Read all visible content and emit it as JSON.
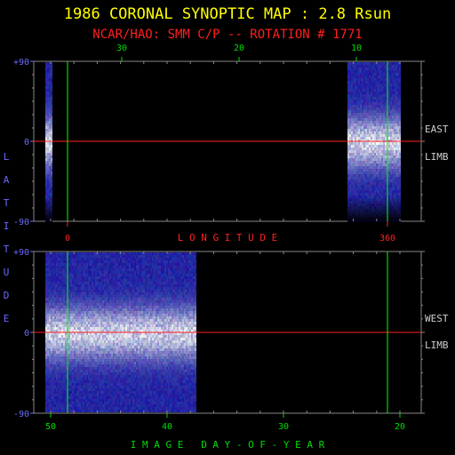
{
  "header": {
    "title": "1986 CORONAL SYNOPTIC MAP : 2.8 Rsun",
    "subtitle": "NCAR/HAO: SMM C/P -- ROTATION # 1771"
  },
  "labels": {
    "lat_letters": [
      "L",
      "A",
      "T",
      "I",
      "T",
      "U",
      "D",
      "E"
    ],
    "longitude": "L O N G I T U D E",
    "day_of_year": "I M A G E   D A Y - O F - Y E A R",
    "east": "EAST",
    "west": "WEST",
    "limb_east": "LIMB",
    "limb_west": "LIMB"
  },
  "colors": {
    "title": "#ffff00",
    "subtitle": "#ff2020",
    "lat_ticks": "#6a6aff",
    "top_ticks": "#00dd00",
    "bottom_ticks": "#00dd00",
    "longitude_label": "#ff2020",
    "meridian": "#00ff00",
    "equator": "#ff2020",
    "side_text": "#d0d0d0",
    "axis": "#888888"
  },
  "chart_data": [
    {
      "type": "heatmap",
      "panel": "top",
      "side": "east",
      "ylabel": "LATITUDE",
      "y_ticks": [
        "+90",
        "0",
        "-90"
      ],
      "y_tick_values": [
        90,
        0,
        -90
      ],
      "top_ticks": [
        "30",
        "20",
        "10"
      ],
      "top_tick_days": [
        30,
        20,
        10
      ],
      "x_ticks": [
        "0",
        "360"
      ],
      "x_tick_values": [
        0,
        360
      ],
      "xlabel": "LONGITUDE",
      "meridian_longitudes": [
        0,
        360
      ],
      "equator_latitude": 0,
      "data_coverage_longitude": [
        [
          -25,
          -18
        ],
        [
          315,
          375
        ]
      ]
    },
    {
      "type": "heatmap",
      "panel": "bottom",
      "side": "west",
      "ylabel": "LATITUDE",
      "y_ticks": [
        "+90",
        "0",
        "-90"
      ],
      "y_tick_values": [
        90,
        0,
        -90
      ],
      "x_ticks": [
        "50",
        "40",
        "30",
        "20"
      ],
      "x_tick_days": [
        50,
        40,
        30,
        20
      ],
      "xlabel": "IMAGE DAY-OF-YEAR",
      "meridian_longitudes": [
        0,
        360
      ],
      "equator_latitude": 0,
      "data_coverage_longitude": [
        [
          -25,
          145
        ]
      ]
    }
  ]
}
